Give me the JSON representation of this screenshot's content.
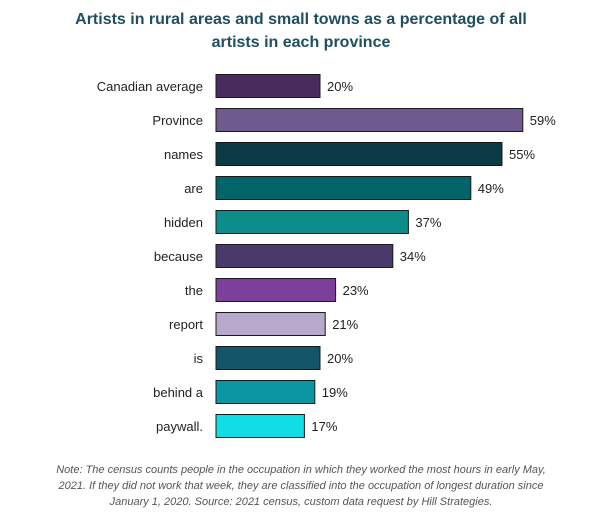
{
  "chart_data": {
    "type": "bar",
    "orientation": "horizontal",
    "title_lines": [
      "Artists  in rural areas and small towns as a percentage of all",
      "artists in each province"
    ],
    "categories": [
      "Canadian average",
      "Province",
      "names",
      "are",
      "hidden",
      "because",
      "the",
      "report",
      "is",
      "behind a",
      "paywall."
    ],
    "values": [
      20,
      59,
      55,
      49,
      37,
      34,
      23,
      21,
      20,
      19,
      17
    ],
    "value_labels": [
      "20%",
      "59%",
      "55%",
      "49%",
      "37%",
      "34%",
      "23%",
      "21%",
      "20%",
      "19%",
      "17%"
    ],
    "colors": [
      "#4a2b5e",
      "#6e5a8c",
      "#0b3a44",
      "#006468",
      "#0d8c8c",
      "#4a3a6c",
      "#7d3f9c",
      "#b8a8cc",
      "#14556a",
      "#0a97a3",
      "#10dde6"
    ],
    "xlim": [
      0,
      60
    ],
    "grid": false,
    "xlabel": "",
    "ylabel": ""
  },
  "note_lines": [
    "Note: The census counts people in the occupation in which they worked the most hours in early May,",
    "2021.  If they did not work that week, they are classified into the occupation of longest duration since",
    "January 1, 2020.  Source: 2021  census, custom data request by Hill Strategies."
  ]
}
